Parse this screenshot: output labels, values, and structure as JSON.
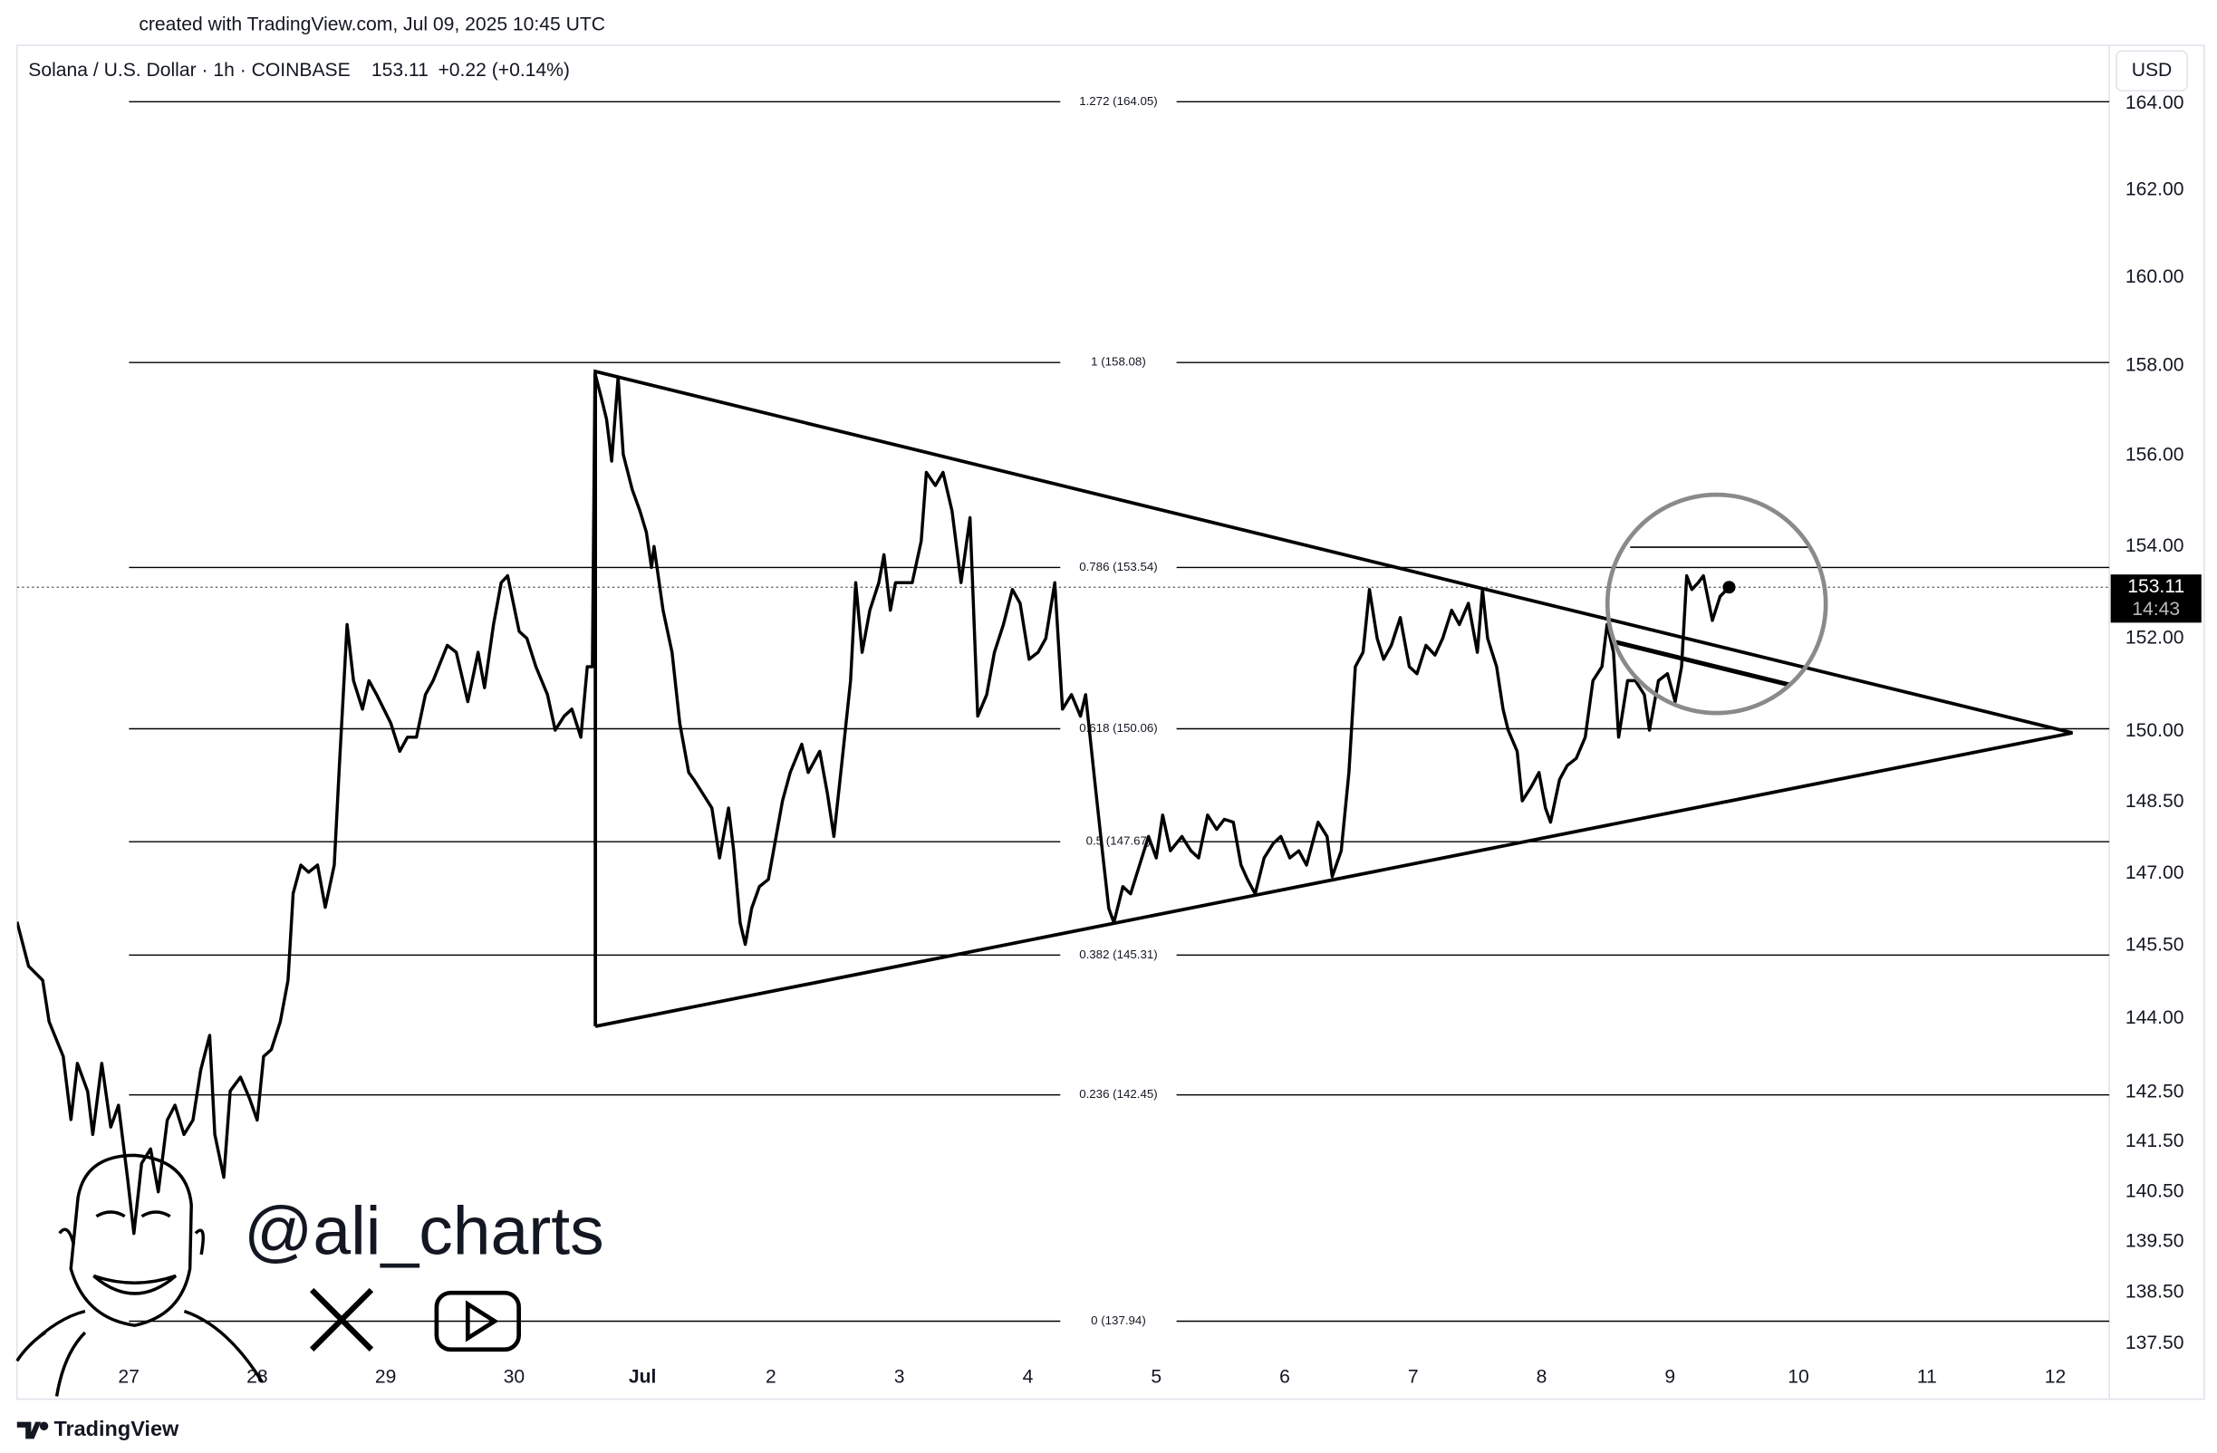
{
  "header": {
    "created": "created with TradingView.com, Jul 09, 2025 10:45 UTC"
  },
  "chart_data": {
    "type": "line",
    "title": "Solana / U.S. Dollar · 1h · COINBASE",
    "quote": "153.11",
    "change": "+0.22 (+0.14%)",
    "currency": "USD",
    "color": "#000000",
    "log_scale": true,
    "grid": false,
    "xlim": [
      -0.87,
      15.42
    ],
    "xticks": [
      {
        "value": 0,
        "label": "27"
      },
      {
        "value": 1,
        "label": "28"
      },
      {
        "value": 2,
        "label": "29"
      },
      {
        "value": 3,
        "label": "30"
      },
      {
        "value": 4,
        "label": "Jul"
      },
      {
        "value": 5,
        "label": "2"
      },
      {
        "value": 6,
        "label": "3"
      },
      {
        "value": 7,
        "label": "4"
      },
      {
        "value": 8,
        "label": "5"
      },
      {
        "value": 9,
        "label": "6"
      },
      {
        "value": 10,
        "label": "7"
      },
      {
        "value": 11,
        "label": "8"
      },
      {
        "value": 12,
        "label": "9"
      },
      {
        "value": 13,
        "label": "10"
      },
      {
        "value": 14,
        "label": "11"
      },
      {
        "value": 15,
        "label": "12"
      }
    ],
    "ylim": [
      136.42,
      165.37
    ],
    "yticks": [
      {
        "value": 164,
        "label": "164.00"
      },
      {
        "value": 162,
        "label": "162.00"
      },
      {
        "value": 160,
        "label": "160.00"
      },
      {
        "value": 158,
        "label": "158.00"
      },
      {
        "value": 156,
        "label": "156.00"
      },
      {
        "value": 154,
        "label": "154.00"
      },
      {
        "value": 152,
        "label": "152.00"
      },
      {
        "value": 150,
        "label": "150.00"
      },
      {
        "value": 148.5,
        "label": "148.50"
      },
      {
        "value": 147,
        "label": "147.00"
      },
      {
        "value": 145.5,
        "label": "145.50"
      },
      {
        "value": 144,
        "label": "144.00"
      },
      {
        "value": 142.5,
        "label": "142.50"
      },
      {
        "value": 141.5,
        "label": "141.50"
      },
      {
        "value": 140.5,
        "label": "140.50"
      },
      {
        "value": 139.5,
        "label": "139.50"
      },
      {
        "value": 138.5,
        "label": "138.50"
      },
      {
        "value": 137.5,
        "label": "137.50"
      }
    ],
    "fib_levels": [
      {
        "value": 164.05,
        "label": "1.272 (164.05)"
      },
      {
        "value": 158.08,
        "label": "1 (158.08)"
      },
      {
        "value": 153.54,
        "label": "0.786 (153.54)"
      },
      {
        "value": 150.06,
        "label": "0.618 (150.06)"
      },
      {
        "value": 147.67,
        "label": "0.5 (147.67)"
      },
      {
        "value": 145.31,
        "label": "0.382 (145.31)"
      },
      {
        "value": 142.45,
        "label": "0.236 (142.45)"
      },
      {
        "value": 137.94,
        "label": "0 (137.94)"
      }
    ],
    "last_price": 153.11,
    "countdown": "14:43",
    "watermark": "@ali_charts",
    "x": [
      -0.87,
      -0.78,
      -0.67,
      -0.62,
      -0.51,
      -0.45,
      -0.4,
      -0.32,
      -0.28,
      -0.21,
      -0.14,
      -0.08,
      -0.01,
      0.04,
      0.1,
      0.17,
      0.23,
      0.3,
      0.36,
      0.43,
      0.5,
      0.56,
      0.63,
      0.67,
      0.74,
      0.79,
      0.87,
      0.94,
      1.0,
      1.05,
      1.11,
      1.18,
      1.24,
      1.28,
      1.34,
      1.4,
      1.47,
      1.53,
      1.6,
      1.64,
      1.7,
      1.75,
      1.82,
      1.87,
      1.93,
      2.04,
      2.11,
      2.17,
      2.24,
      2.31,
      2.37,
      2.48,
      2.55,
      2.64,
      2.72,
      2.77,
      2.84,
      2.9,
      2.95,
      3.04,
      3.1,
      3.17,
      3.26,
      3.32,
      3.39,
      3.45,
      3.52,
      3.57,
      3.61,
      3.63,
      3.68,
      3.72,
      3.76,
      3.81,
      3.85,
      3.92,
      3.98,
      4.03,
      4.07,
      4.09,
      4.16,
      4.23,
      4.29,
      4.36,
      4.4,
      4.47,
      4.54,
      4.6,
      4.67,
      4.71,
      4.76,
      4.8,
      4.85,
      4.91,
      4.98,
      5.04,
      5.09,
      5.15,
      5.24,
      5.29,
      5.38,
      5.44,
      5.49,
      5.55,
      5.62,
      5.66,
      5.71,
      5.77,
      5.84,
      5.88,
      5.93,
      5.97,
      6.04,
      6.1,
      6.17,
      6.21,
      6.28,
      6.34,
      6.41,
      6.48,
      6.55,
      6.61,
      6.68,
      6.74,
      6.81,
      6.88,
      6.94,
      7.01,
      7.08,
      7.14,
      7.21,
      7.27,
      7.34,
      7.41,
      7.45,
      7.52,
      7.58,
      7.63,
      7.67,
      7.74,
      7.8,
      7.87,
      7.94,
      8.0,
      8.05,
      8.11,
      8.2,
      8.27,
      8.33,
      8.4,
      8.47,
      8.53,
      8.6,
      8.66,
      8.71,
      8.77,
      8.84,
      8.91,
      8.97,
      9.04,
      9.11,
      9.17,
      9.26,
      9.33,
      9.37,
      9.44,
      9.5,
      9.55,
      9.61,
      9.66,
      9.72,
      9.77,
      9.83,
      9.9,
      9.97,
      10.03,
      10.1,
      10.17,
      10.23,
      10.3,
      10.36,
      10.43,
      10.5,
      10.54,
      10.58,
      10.65,
      10.7,
      10.74,
      10.81,
      10.85,
      10.92,
      10.98,
      11.03,
      11.07,
      11.14,
      11.2,
      11.27,
      11.34,
      11.4,
      11.47,
      11.51,
      11.56,
      11.6,
      11.67,
      11.73,
      11.8,
      11.84,
      11.91,
      11.98,
      12.04,
      12.09,
      12.13,
      12.17,
      12.22,
      12.26,
      12.33,
      12.39,
      12.46
    ],
    "values": [
      146.0,
      145.08,
      144.79,
      143.94,
      143.23,
      141.95,
      143.09,
      142.52,
      141.65,
      143.09,
      141.8,
      142.24,
      140.79,
      139.67,
      141.07,
      141.36,
      140.5,
      141.94,
      142.24,
      141.65,
      141.94,
      142.95,
      143.66,
      141.65,
      140.79,
      142.53,
      142.81,
      142.38,
      141.94,
      143.23,
      143.37,
      143.94,
      144.79,
      146.59,
      147.18,
      147.03,
      147.18,
      146.3,
      147.18,
      149.28,
      152.3,
      151.09,
      150.48,
      151.09,
      150.79,
      150.18,
      149.58,
      149.88,
      149.88,
      150.79,
      151.09,
      151.85,
      151.7,
      150.64,
      151.7,
      150.94,
      152.3,
      153.21,
      153.36,
      152.15,
      152.0,
      151.39,
      150.79,
      150.03,
      150.33,
      150.48,
      149.88,
      151.39,
      151.39,
      157.84,
      157.28,
      156.81,
      155.88,
      157.75,
      156.03,
      155.25,
      154.78,
      154.31,
      153.54,
      154.0,
      152.61,
      151.7,
      150.18,
      149.13,
      148.98,
      148.68,
      148.38,
      147.33,
      148.38,
      147.48,
      145.98,
      145.53,
      146.28,
      146.73,
      146.88,
      147.78,
      148.53,
      149.13,
      149.73,
      149.13,
      149.58,
      148.68,
      147.78,
      149.28,
      151.09,
      153.21,
      151.7,
      152.61,
      153.21,
      153.82,
      152.61,
      153.21,
      153.21,
      153.21,
      154.12,
      155.63,
      155.34,
      155.63,
      154.78,
      153.21,
      154.63,
      150.33,
      150.79,
      151.7,
      152.3,
      153.06,
      152.76,
      151.55,
      151.7,
      152.0,
      153.21,
      150.48,
      150.79,
      150.33,
      150.79,
      148.98,
      147.48,
      146.28,
      145.98,
      146.73,
      146.58,
      147.18,
      147.78,
      147.33,
      148.23,
      147.48,
      147.78,
      147.48,
      147.33,
      148.23,
      147.93,
      148.14,
      148.08,
      147.18,
      146.88,
      146.58,
      147.33,
      147.63,
      147.78,
      147.33,
      147.48,
      147.18,
      148.08,
      147.78,
      146.94,
      147.48,
      149.13,
      151.39,
      151.7,
      153.06,
      152.0,
      151.55,
      151.85,
      152.45,
      151.39,
      151.24,
      151.85,
      151.64,
      152.0,
      152.61,
      152.3,
      152.76,
      151.7,
      153.06,
      152.0,
      151.39,
      150.48,
      150.03,
      149.58,
      148.53,
      148.83,
      149.13,
      148.38,
      148.08,
      148.98,
      149.28,
      149.43,
      149.88,
      151.09,
      151.39,
      152.3,
      151.7,
      149.88,
      151.09,
      151.09,
      150.79,
      150.03,
      151.09,
      151.24,
      150.64,
      151.39,
      153.36,
      153.06,
      153.21,
      153.36,
      152.39,
      152.91,
      153.11
    ]
  },
  "footer": {
    "logo": "TradingView"
  }
}
